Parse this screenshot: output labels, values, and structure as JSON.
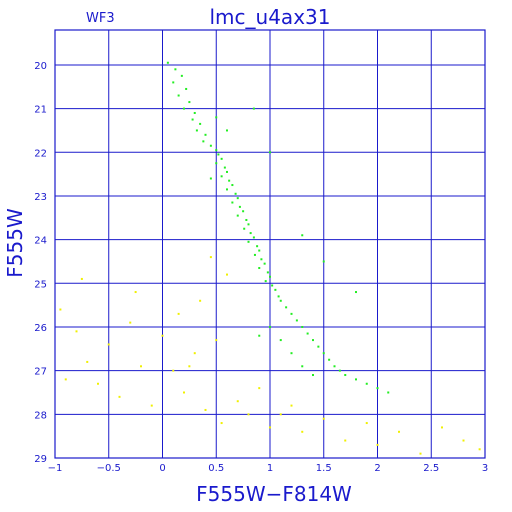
{
  "chart_data": {
    "type": "scatter",
    "title": "lmc_u4ax31",
    "panel_label": "WF3",
    "xlabel": "F555W−F814W",
    "ylabel": "F555W",
    "xlim": [
      -1,
      3
    ],
    "ylim": [
      29,
      19.2
    ],
    "y_inverted": true,
    "x_ticks": [
      -1,
      -0.5,
      0,
      0.5,
      1,
      1.5,
      2,
      2.5,
      3
    ],
    "x_tick_labels": [
      "−1",
      "−0.5",
      "0",
      "0.5",
      "1",
      "1.5",
      "2",
      "2.5",
      "3"
    ],
    "y_ticks": [
      20,
      21,
      22,
      23,
      24,
      25,
      26,
      27,
      28,
      29
    ],
    "y_tick_labels": [
      "20",
      "21",
      "22",
      "23",
      "24",
      "25",
      "26",
      "27",
      "28",
      "29"
    ],
    "grid": true,
    "colors": {
      "axis": "#1a1acc",
      "series_green": "#22ee22",
      "series_yellow": "#f0f000"
    },
    "series": [
      {
        "color_key": "series_green",
        "points": [
          [
            0.05,
            19.95
          ],
          [
            0.12,
            20.1
          ],
          [
            0.18,
            20.25
          ],
          [
            0.1,
            20.4
          ],
          [
            0.22,
            20.55
          ],
          [
            0.15,
            20.7
          ],
          [
            0.25,
            20.85
          ],
          [
            0.2,
            21.0
          ],
          [
            0.3,
            21.1
          ],
          [
            0.28,
            21.25
          ],
          [
            0.35,
            21.35
          ],
          [
            0.32,
            21.5
          ],
          [
            0.4,
            21.6
          ],
          [
            0.38,
            21.75
          ],
          [
            0.45,
            21.85
          ],
          [
            0.5,
            21.95
          ],
          [
            0.52,
            22.05
          ],
          [
            0.55,
            22.15
          ],
          [
            0.5,
            22.25
          ],
          [
            0.58,
            22.35
          ],
          [
            0.6,
            22.45
          ],
          [
            0.55,
            22.55
          ],
          [
            0.62,
            22.65
          ],
          [
            0.65,
            22.75
          ],
          [
            0.6,
            22.85
          ],
          [
            0.68,
            22.95
          ],
          [
            0.7,
            23.05
          ],
          [
            0.65,
            23.15
          ],
          [
            0.72,
            23.25
          ],
          [
            0.75,
            23.35
          ],
          [
            0.7,
            23.45
          ],
          [
            0.78,
            23.55
          ],
          [
            0.8,
            23.65
          ],
          [
            0.76,
            23.75
          ],
          [
            0.82,
            23.85
          ],
          [
            0.85,
            23.95
          ],
          [
            0.8,
            24.05
          ],
          [
            0.88,
            24.15
          ],
          [
            0.9,
            24.25
          ],
          [
            0.86,
            24.35
          ],
          [
            0.92,
            24.45
          ],
          [
            0.95,
            24.55
          ],
          [
            0.9,
            24.65
          ],
          [
            0.98,
            24.75
          ],
          [
            1.0,
            24.85
          ],
          [
            0.96,
            24.95
          ],
          [
            1.02,
            25.05
          ],
          [
            1.05,
            25.15
          ],
          [
            1.08,
            25.3
          ],
          [
            1.1,
            25.4
          ],
          [
            1.15,
            25.55
          ],
          [
            1.2,
            25.7
          ],
          [
            1.25,
            25.85
          ],
          [
            1.3,
            26.0
          ],
          [
            1.35,
            26.15
          ],
          [
            1.4,
            26.3
          ],
          [
            1.45,
            26.45
          ],
          [
            1.5,
            26.6
          ],
          [
            1.55,
            26.75
          ],
          [
            1.6,
            26.9
          ],
          [
            1.65,
            27.0
          ],
          [
            1.7,
            27.1
          ],
          [
            1.8,
            27.2
          ],
          [
            1.9,
            27.3
          ],
          [
            2.0,
            27.4
          ],
          [
            2.1,
            27.5
          ],
          [
            1.0,
            26.0
          ],
          [
            1.1,
            26.3
          ],
          [
            1.2,
            26.6
          ],
          [
            0.9,
            26.2
          ],
          [
            1.3,
            26.9
          ],
          [
            1.4,
            27.1
          ],
          [
            0.6,
            21.5
          ],
          [
            0.5,
            21.2
          ],
          [
            0.45,
            22.6
          ],
          [
            0.85,
            21.0
          ],
          [
            1.0,
            22.0
          ],
          [
            1.3,
            23.9
          ],
          [
            1.5,
            24.5
          ],
          [
            1.8,
            25.2
          ]
        ]
      },
      {
        "color_key": "series_yellow",
        "points": [
          [
            -0.95,
            25.6
          ],
          [
            -0.8,
            26.1
          ],
          [
            -0.7,
            26.8
          ],
          [
            -0.6,
            27.3
          ],
          [
            -0.5,
            26.4
          ],
          [
            -0.4,
            27.6
          ],
          [
            -0.3,
            25.9
          ],
          [
            -0.2,
            26.9
          ],
          [
            -0.1,
            27.8
          ],
          [
            0.0,
            26.2
          ],
          [
            0.1,
            27.0
          ],
          [
            0.2,
            27.5
          ],
          [
            0.3,
            26.6
          ],
          [
            0.35,
            25.4
          ],
          [
            0.4,
            27.9
          ],
          [
            0.5,
            26.3
          ],
          [
            0.55,
            28.2
          ],
          [
            0.6,
            24.8
          ],
          [
            0.7,
            27.7
          ],
          [
            0.8,
            28.0
          ],
          [
            0.9,
            27.4
          ],
          [
            1.0,
            28.3
          ],
          [
            1.1,
            28.0
          ],
          [
            1.2,
            27.8
          ],
          [
            1.3,
            28.4
          ],
          [
            1.5,
            28.1
          ],
          [
            1.7,
            28.6
          ],
          [
            1.9,
            28.2
          ],
          [
            2.0,
            28.7
          ],
          [
            2.2,
            28.4
          ],
          [
            2.4,
            28.9
          ],
          [
            2.6,
            28.3
          ],
          [
            2.8,
            28.6
          ],
          [
            2.95,
            28.8
          ],
          [
            -0.9,
            27.2
          ],
          [
            -0.75,
            24.9
          ],
          [
            -0.25,
            25.2
          ],
          [
            0.15,
            25.7
          ],
          [
            0.45,
            24.4
          ],
          [
            0.25,
            26.9
          ]
        ]
      }
    ]
  }
}
